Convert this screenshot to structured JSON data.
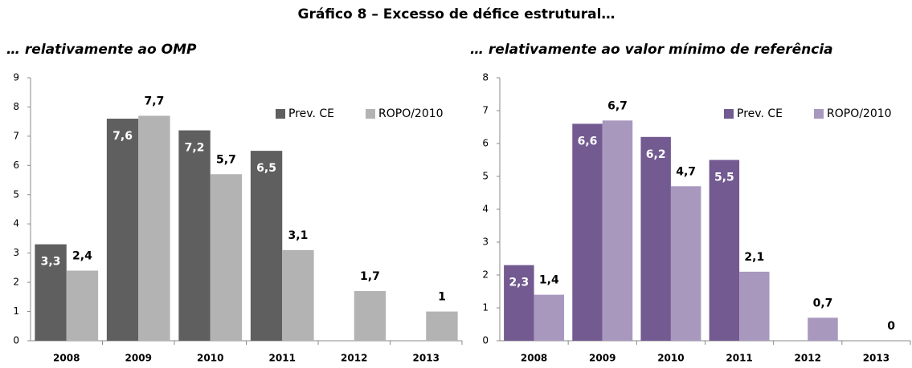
{
  "title": "Gráfico 8 – Excesso de défice estrutural…",
  "chart_data": [
    {
      "type": "bar",
      "subtitle": "… relativamente ao OMP",
      "categories": [
        "2008",
        "2009",
        "2010",
        "2011",
        "2012",
        "2013"
      ],
      "series": [
        {
          "name": "Prev. CE",
          "color": "#5f5f5f",
          "values": [
            3.3,
            7.6,
            7.2,
            6.5,
            null,
            null
          ],
          "value_labels": [
            "3,3",
            "7,6",
            "7,2",
            "6,5",
            null,
            null
          ]
        },
        {
          "name": "ROPO/2010",
          "color": "#b3b3b3",
          "values": [
            2.4,
            7.7,
            5.7,
            3.1,
            1.7,
            1
          ],
          "value_labels": [
            "2,4",
            "7,7",
            "5,7",
            "3,1",
            "1,7",
            "1"
          ]
        }
      ],
      "ylim": [
        0,
        9
      ],
      "yticks": [
        0,
        1,
        2,
        3,
        4,
        5,
        6,
        7,
        8,
        9
      ],
      "grid": false,
      "legend": "top-right"
    },
    {
      "type": "bar",
      "subtitle": "… relativamente ao valor mínimo de referência",
      "categories": [
        "2008",
        "2009",
        "2010",
        "2011",
        "2012",
        "2013"
      ],
      "series": [
        {
          "name": "Prev. CE",
          "color": "#735a91",
          "values": [
            2.3,
            6.6,
            6.2,
            5.5,
            null,
            null
          ],
          "value_labels": [
            "2,3",
            "6,6",
            "6,2",
            "5,5",
            null,
            null
          ]
        },
        {
          "name": "ROPO/2010",
          "color": "#a898be",
          "values": [
            1.4,
            6.7,
            4.7,
            2.1,
            0.7,
            0
          ],
          "value_labels": [
            "1,4",
            "6,7",
            "4,7",
            "2,1",
            "0,7",
            "0"
          ]
        }
      ],
      "ylim": [
        0,
        8
      ],
      "yticks": [
        0,
        1,
        2,
        3,
        4,
        5,
        6,
        7,
        8
      ],
      "grid": false,
      "legend": "top-right"
    }
  ]
}
